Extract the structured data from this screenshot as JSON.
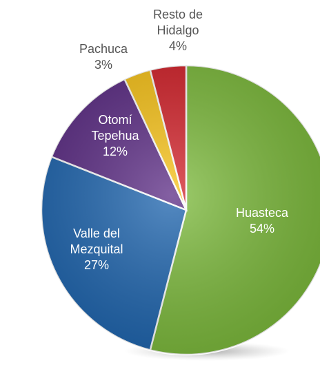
{
  "chart_data": {
    "type": "pie",
    "categories": [
      "Huasteca",
      "Valle del Mezquital",
      "Otomí Tepehua",
      "Pachuca",
      "Resto de Hidalgo"
    ],
    "values": [
      54,
      27,
      12,
      3,
      4
    ],
    "value_labels": [
      "54%",
      "27%",
      "12%",
      "3%",
      "4%"
    ],
    "colors": [
      "#7cba3b",
      "#1d64ae",
      "#5b2b84",
      "#f8c318",
      "#d3222a"
    ]
  }
}
